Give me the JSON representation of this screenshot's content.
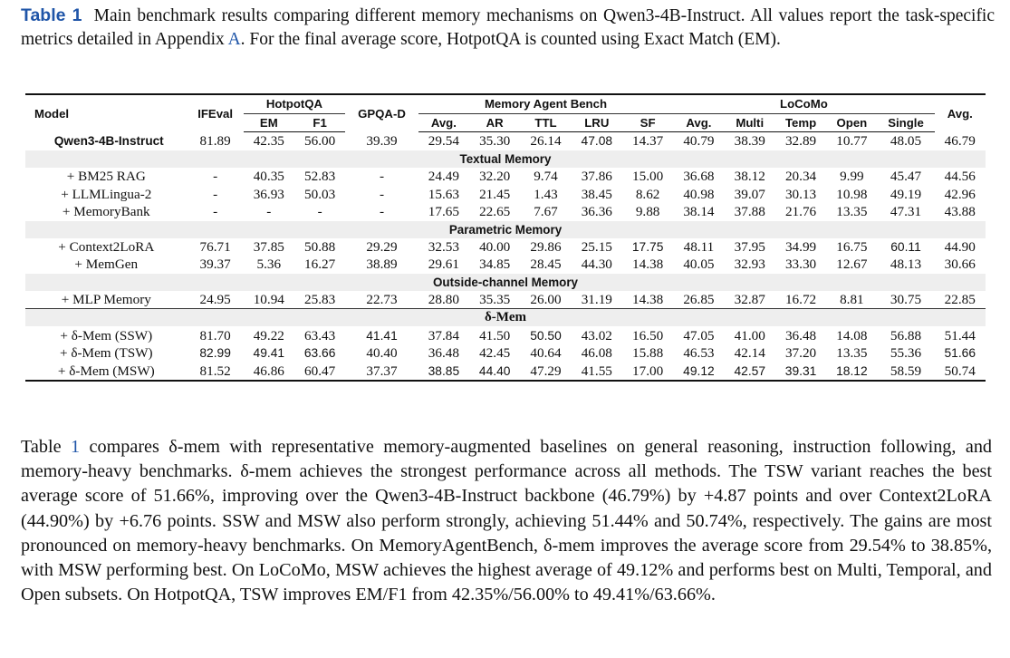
{
  "caption": {
    "label": "Table 1",
    "part1": "Main benchmark results comparing different memory mechanisms on Qwen3-4B-Instruct. All values report the task-specific metrics detailed in Appendix",
    "appendix_ref": "A",
    "part2": ". For the final average score, HotpotQA is counted using Exact Match (EM)."
  },
  "table": {
    "header1": {
      "model": "Model",
      "ifeval": "IFEval",
      "hotpotqa": "HotpotQA",
      "gpqa": "GPQA-D",
      "mab": "Memory Agent Bench",
      "locomo": "LoCoMo",
      "avg": "Avg."
    },
    "header2": [
      "EM",
      "F1",
      "Avg.",
      "AR",
      "TTL",
      "LRU",
      "SF",
      "Avg.",
      "Multi",
      "Temp",
      "Open",
      "Single"
    ],
    "baseline": {
      "name": "Qwen3-4B-Instruct",
      "cells": [
        {
          "v": "81.89"
        },
        {
          "v": "42.35"
        },
        {
          "v": "56.00"
        },
        {
          "v": "39.39"
        },
        {
          "v": "29.54"
        },
        {
          "v": "35.30"
        },
        {
          "v": "26.14"
        },
        {
          "v": "47.08",
          "b": true
        },
        {
          "v": "14.37"
        },
        {
          "v": "40.79"
        },
        {
          "v": "38.39"
        },
        {
          "v": "32.89"
        },
        {
          "v": "10.77"
        },
        {
          "v": "48.05"
        },
        {
          "v": "46.79"
        }
      ]
    },
    "sections": [
      {
        "title": "Textual Memory",
        "rows": [
          {
            "name": "+ BM25 RAG",
            "cells": [
              {
                "v": "-"
              },
              {
                "v": "40.35"
              },
              {
                "v": "52.83"
              },
              {
                "v": "-"
              },
              {
                "v": "24.49"
              },
              {
                "v": "32.20"
              },
              {
                "v": "9.74"
              },
              {
                "v": "37.86"
              },
              {
                "v": "15.00"
              },
              {
                "v": "36.68"
              },
              {
                "v": "38.12"
              },
              {
                "v": "20.34"
              },
              {
                "v": "9.99"
              },
              {
                "v": "45.47"
              },
              {
                "v": "44.56"
              }
            ]
          },
          {
            "name": "+ LLMLingua-2",
            "cells": [
              {
                "v": "-"
              },
              {
                "v": "36.93"
              },
              {
                "v": "50.03"
              },
              {
                "v": "-"
              },
              {
                "v": "15.63"
              },
              {
                "v": "21.45"
              },
              {
                "v": "1.43"
              },
              {
                "v": "38.45"
              },
              {
                "v": "8.62"
              },
              {
                "v": "40.98"
              },
              {
                "v": "39.07"
              },
              {
                "v": "30.13"
              },
              {
                "v": "10.98"
              },
              {
                "v": "49.19"
              },
              {
                "v": "42.96"
              }
            ]
          },
          {
            "name": "+ MemoryBank",
            "cells": [
              {
                "v": "-"
              },
              {
                "v": "-"
              },
              {
                "v": "-"
              },
              {
                "v": "-"
              },
              {
                "v": "17.65"
              },
              {
                "v": "22.65"
              },
              {
                "v": "7.67"
              },
              {
                "v": "36.36"
              },
              {
                "v": "9.88"
              },
              {
                "v": "38.14"
              },
              {
                "v": "37.88"
              },
              {
                "v": "21.76"
              },
              {
                "v": "13.35"
              },
              {
                "v": "47.31"
              },
              {
                "v": "43.88"
              }
            ]
          }
        ]
      },
      {
        "title": "Parametric Memory",
        "rows": [
          {
            "name": "+ Context2LoRA",
            "cells": [
              {
                "v": "76.71"
              },
              {
                "v": "37.85"
              },
              {
                "v": "50.88"
              },
              {
                "v": "29.29"
              },
              {
                "v": "32.53"
              },
              {
                "v": "40.00"
              },
              {
                "v": "29.86"
              },
              {
                "v": "25.15"
              },
              {
                "v": "17.75",
                "b": true
              },
              {
                "v": "48.11"
              },
              {
                "v": "37.95"
              },
              {
                "v": "34.99"
              },
              {
                "v": "16.75"
              },
              {
                "v": "60.11",
                "b": true
              },
              {
                "v": "44.90"
              }
            ]
          },
          {
            "name": "+ MemGen",
            "cells": [
              {
                "v": "39.37"
              },
              {
                "v": "5.36"
              },
              {
                "v": "16.27"
              },
              {
                "v": "38.89"
              },
              {
                "v": "29.61"
              },
              {
                "v": "34.85"
              },
              {
                "v": "28.45"
              },
              {
                "v": "44.30"
              },
              {
                "v": "14.38"
              },
              {
                "v": "40.05"
              },
              {
                "v": "32.93"
              },
              {
                "v": "33.30"
              },
              {
                "v": "12.67"
              },
              {
                "v": "48.13"
              },
              {
                "v": "30.66"
              }
            ]
          }
        ]
      },
      {
        "title": "Outside-channel Memory",
        "rows": [
          {
            "name": "+ MLP Memory",
            "cells": [
              {
                "v": "24.95"
              },
              {
                "v": "10.94"
              },
              {
                "v": "25.83"
              },
              {
                "v": "22.73"
              },
              {
                "v": "28.80"
              },
              {
                "v": "35.35"
              },
              {
                "v": "26.00"
              },
              {
                "v": "31.19"
              },
              {
                "v": "14.38"
              },
              {
                "v": "26.85"
              },
              {
                "v": "32.87"
              },
              {
                "v": "16.72"
              },
              {
                "v": "8.81"
              },
              {
                "v": "30.75"
              },
              {
                "v": "22.85"
              }
            ]
          }
        ]
      },
      {
        "title": "δ-Mem",
        "serif": true,
        "rows": [
          {
            "name": "+ δ-Mem (SSW)",
            "cells": [
              {
                "v": "81.70"
              },
              {
                "v": "49.22"
              },
              {
                "v": "63.43"
              },
              {
                "v": "41.41",
                "b": true
              },
              {
                "v": "37.84"
              },
              {
                "v": "41.50"
              },
              {
                "v": "50.50",
                "b": true
              },
              {
                "v": "43.02"
              },
              {
                "v": "16.50"
              },
              {
                "v": "47.05"
              },
              {
                "v": "41.00"
              },
              {
                "v": "36.48"
              },
              {
                "v": "14.08"
              },
              {
                "v": "56.88"
              },
              {
                "v": "51.44"
              }
            ]
          },
          {
            "name": "+ δ-Mem (TSW)",
            "cells": [
              {
                "v": "82.99",
                "b": true
              },
              {
                "v": "49.41",
                "b": true
              },
              {
                "v": "63.66",
                "b": true
              },
              {
                "v": "40.40"
              },
              {
                "v": "36.48"
              },
              {
                "v": "42.45"
              },
              {
                "v": "40.64"
              },
              {
                "v": "46.08"
              },
              {
                "v": "15.88"
              },
              {
                "v": "46.53"
              },
              {
                "v": "42.14"
              },
              {
                "v": "37.20"
              },
              {
                "v": "13.35"
              },
              {
                "v": "55.36"
              },
              {
                "v": "51.66",
                "b": true
              }
            ]
          },
          {
            "name": "+ δ-Mem (MSW)",
            "cells": [
              {
                "v": "81.52"
              },
              {
                "v": "46.86"
              },
              {
                "v": "60.47"
              },
              {
                "v": "37.37"
              },
              {
                "v": "38.85",
                "b": true
              },
              {
                "v": "44.40",
                "b": true
              },
              {
                "v": "47.29"
              },
              {
                "v": "41.55"
              },
              {
                "v": "17.00"
              },
              {
                "v": "49.12",
                "b": true
              },
              {
                "v": "42.57",
                "b": true
              },
              {
                "v": "39.31",
                "b": true
              },
              {
                "v": "18.12",
                "b": true
              },
              {
                "v": "58.59"
              },
              {
                "v": "50.74"
              }
            ]
          }
        ]
      }
    ]
  },
  "body": {
    "t_prefix": "Table",
    "t_ref": "1",
    "t_rest": "compares δ-mem with representative memory-augmented baselines on general reasoning, instruction following, and memory-heavy benchmarks. δ-mem achieves the strongest performance across all methods. The TSW variant reaches the best average score of 51.66%, improving over the Qwen3-4B-Instruct backbone (46.79%) by +4.87 points and over Context2LoRA (44.90%) by +6.76 points. SSW and MSW also perform strongly, achieving 51.44% and 50.74%, respectively. The gains are most pronounced on memory-heavy benchmarks. On MemoryAgentBench, δ-mem improves the average score from 29.54% to 38.85%, with MSW performing best. On LoCoMo, MSW achieves the highest average of 49.12% and performs best on Multi, Temporal, and Open subsets. On HotpotQA, TSW improves EM/F1 from 42.35%/56.00% to 49.41%/63.66%."
  }
}
